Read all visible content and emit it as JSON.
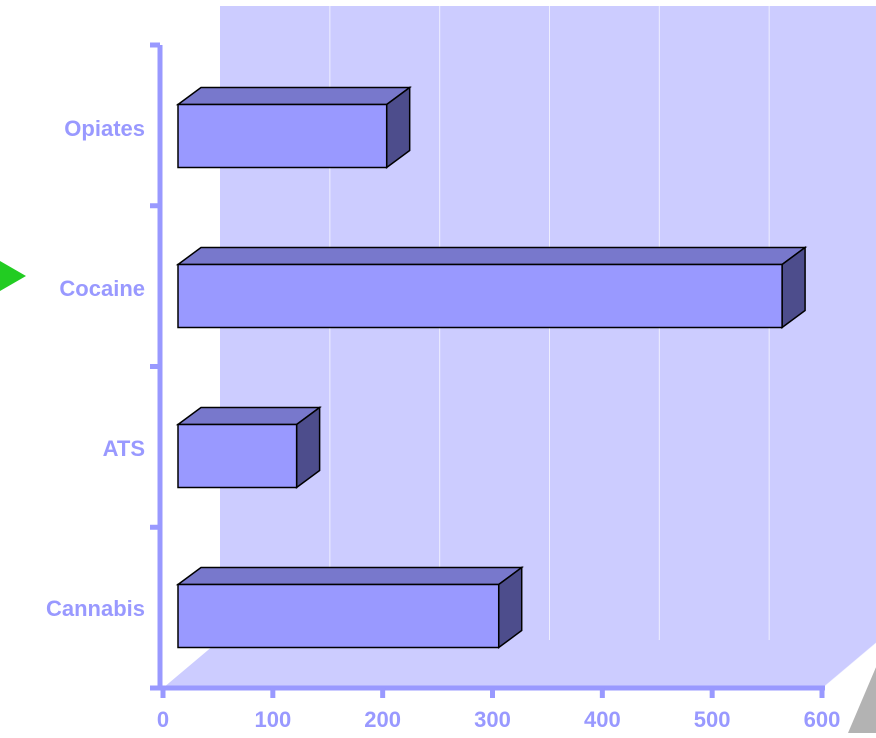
{
  "chart_data": {
    "type": "bar",
    "orientation": "horizontal",
    "style": "3d",
    "categories": [
      "Opiates",
      "Cocaine",
      "ATS",
      "Cannabis"
    ],
    "values": [
      190,
      550,
      108,
      292
    ],
    "xlim": [
      0,
      600
    ],
    "x_ticks": [
      "0",
      "100",
      "200",
      "300",
      "400",
      "500",
      "600"
    ],
    "title": "",
    "xlabel": "",
    "ylabel": "",
    "grid": "vertical",
    "legend": "none",
    "highlighted_category": "Cocaine"
  },
  "colors": {
    "background_wall": "#ccccff",
    "grid_line": "#eeeeff",
    "bar_front": "#9999ff",
    "bar_top": "#7878cc",
    "bar_side": "#4d4d8c",
    "bar_outline": "#000000",
    "axis": "#9999ff",
    "label_text": "#9999ff",
    "floor_corner": "#b3b3b3",
    "marker_arrow": "#22cc22"
  },
  "marker_icon": "green-arrow-icon"
}
